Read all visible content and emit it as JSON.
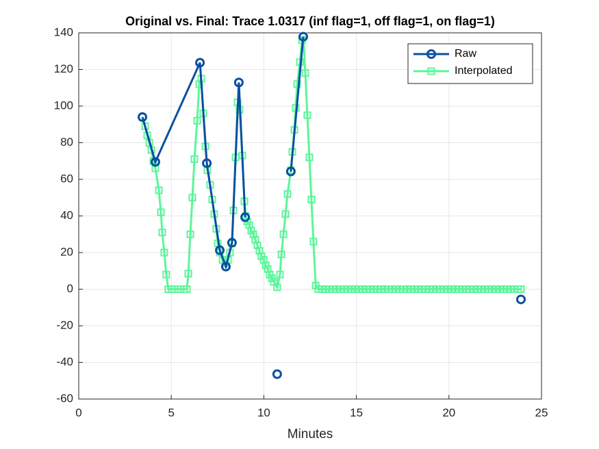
{
  "chart_data": {
    "type": "line",
    "title": "Original vs. Final: Trace 1.0317 (inf flag=1, off flag=1, on flag=1)",
    "xlabel": "Minutes",
    "xlim": [
      0,
      25
    ],
    "xticks": [
      0,
      5,
      10,
      15,
      20,
      25
    ],
    "ylim": [
      -60,
      140
    ],
    "yticks": [
      -60,
      -40,
      -20,
      0,
      20,
      40,
      60,
      80,
      100,
      120,
      140
    ],
    "grid": true,
    "legend": "northeast",
    "series": [
      {
        "name": "Raw",
        "color": "#0b4ea2",
        "marker": "circle",
        "x": [
          3.44,
          4.14,
          6.55,
          6.92,
          7.62,
          7.95,
          8.28,
          8.65,
          8.99,
          null,
          10.72,
          null,
          11.46,
          12.13,
          null,
          23.89
        ],
        "values": [
          94,
          69.5,
          123.7,
          68.8,
          21.3,
          12.3,
          25.4,
          112.9,
          39.3,
          null,
          -46.4,
          null,
          64.3,
          137.9,
          null,
          -5.6
        ]
      },
      {
        "name": "Interpolated",
        "color": "#5cf59a",
        "marker": "square",
        "x": [
          3.44,
          3.59,
          3.7,
          3.81,
          3.92,
          4.03,
          4.14,
          4.33,
          4.44,
          4.51,
          4.62,
          4.73,
          4.84,
          5.03,
          5.18,
          5.36,
          5.51,
          5.7,
          5.84,
          5.92,
          6.03,
          6.14,
          6.25,
          6.4,
          6.51,
          6.62,
          6.73,
          6.84,
          6.95,
          7.1,
          7.21,
          7.32,
          7.43,
          7.51,
          7.62,
          7.77,
          7.91,
          8.06,
          8.17,
          8.28,
          8.36,
          8.47,
          8.58,
          8.69,
          8.84,
          8.95,
          9.02,
          9.1,
          9.21,
          9.32,
          9.43,
          9.54,
          9.65,
          9.76,
          9.87,
          9.99,
          10.1,
          10.21,
          10.32,
          10.43,
          10.54,
          10.72,
          10.87,
          10.95,
          11.06,
          11.17,
          11.28,
          11.46,
          11.54,
          11.65,
          11.72,
          11.8,
          11.95,
          12.06,
          12.13,
          12.24,
          12.35,
          12.46,
          12.57,
          12.68,
          12.8,
          12.94,
          13.14,
          13.34,
          13.54,
          13.74,
          13.94,
          14.14,
          14.34,
          14.54,
          14.74,
          14.94,
          15.14,
          15.34,
          15.54,
          15.74,
          15.94,
          16.14,
          16.34,
          16.54,
          16.74,
          16.94,
          17.14,
          17.34,
          17.54,
          17.74,
          17.94,
          18.14,
          18.34,
          18.54,
          18.74,
          18.94,
          19.14,
          19.34,
          19.54,
          19.74,
          19.94,
          20.14,
          20.34,
          20.54,
          20.74,
          20.94,
          21.14,
          21.34,
          21.54,
          21.74,
          21.94,
          22.14,
          22.34,
          22.54,
          22.74,
          22.94,
          23.14,
          23.34,
          23.54,
          23.74,
          23.89
        ],
        "values": [
          94,
          89,
          84,
          80,
          76,
          70,
          66,
          54,
          42,
          31,
          20,
          8,
          0,
          0,
          0,
          0,
          0,
          0,
          0,
          8.5,
          30,
          50,
          71,
          92,
          112,
          115,
          96,
          78,
          65,
          57,
          49,
          41,
          33,
          25,
          20,
          16,
          14,
          16,
          20,
          25,
          43,
          72,
          102,
          98,
          73,
          48,
          40,
          37,
          35,
          32,
          30,
          27,
          24,
          21,
          18,
          16,
          13,
          11,
          8,
          6,
          4,
          1,
          8,
          19,
          30,
          41,
          52,
          65,
          75,
          87,
          99,
          112,
          124,
          136,
          138,
          118,
          95,
          72,
          49,
          26,
          2,
          0,
          0,
          0,
          0,
          0,
          0,
          0,
          0,
          0,
          0,
          0,
          0,
          0,
          0,
          0,
          0,
          0,
          0,
          0,
          0,
          0,
          0,
          0,
          0,
          0,
          0,
          0,
          0,
          0,
          0,
          0,
          0,
          0,
          0,
          0,
          0,
          0,
          0,
          0,
          0,
          0,
          0,
          0,
          0,
          0,
          0,
          0,
          0,
          0,
          0,
          0,
          0,
          0,
          0,
          0,
          0
        ]
      }
    ]
  }
}
